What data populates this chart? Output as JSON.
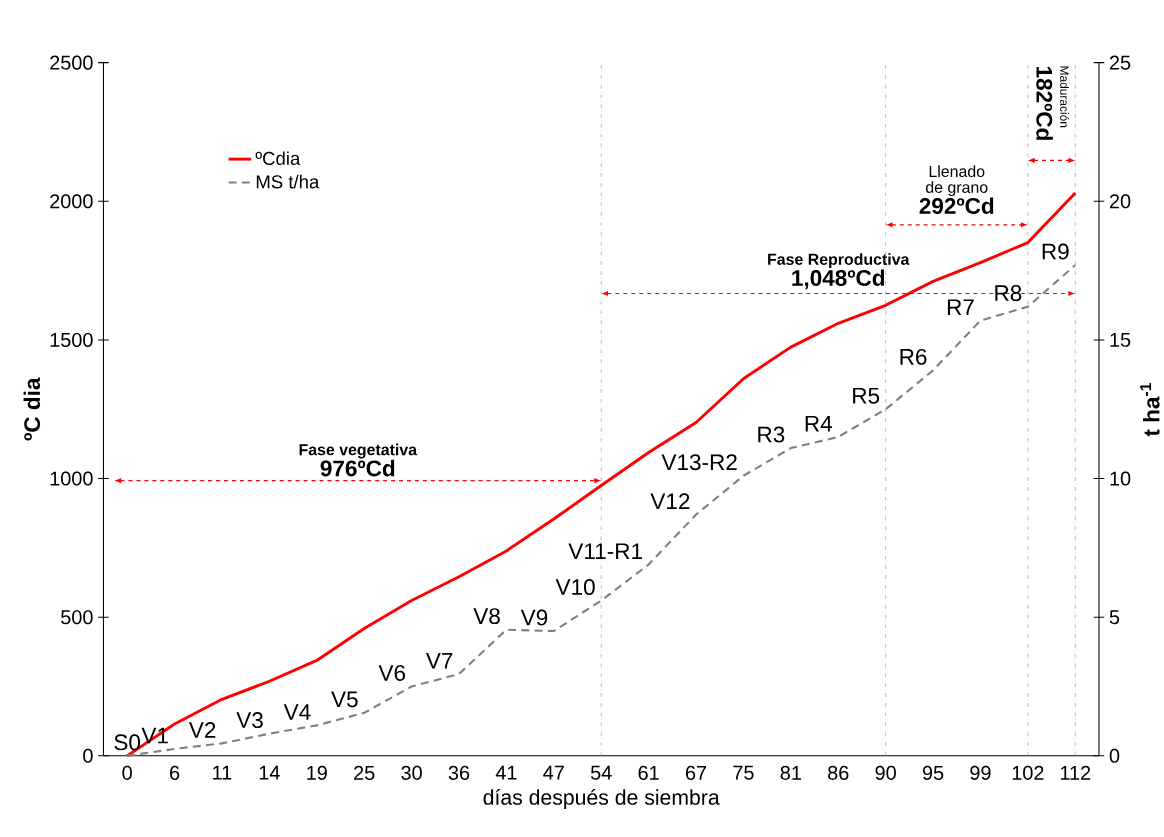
{
  "chart_data": {
    "type": "line",
    "xlabel": "días después de siembra",
    "ylabel": "ºC dia",
    "y2label": "t ha$^{-1}$",
    "categories": [
      "0",
      "6",
      "11",
      "14",
      "19",
      "25",
      "30",
      "36",
      "41",
      "47",
      "54",
      "61",
      "67",
      "75",
      "81",
      "86",
      "90",
      "95",
      "99",
      "102",
      "112"
    ],
    "series": [
      {
        "name": "ºCdia",
        "color": "#ff0000",
        "line_style": "solid",
        "values": [
          0,
          115,
          204,
          269,
          344,
          459,
          560,
          646,
          739,
          854,
          975,
          1094,
          1202,
          1360,
          1474,
          1560,
          1625,
          1711,
          1779,
          1851,
          2030
        ]
      },
      {
        "name": "MS t/ha",
        "color": "#808080",
        "line_style": "dashed",
        "axis": "y2",
        "values": [
          0,
          0.25,
          0.45,
          0.8,
          1.1,
          1.55,
          2.5,
          2.95,
          4.55,
          4.5,
          5.6,
          6.9,
          8.7,
          10.1,
          11.1,
          11.5,
          12.5,
          13.9,
          15.7,
          16.2,
          17.7
        ],
        "value_labels": [
          "S0",
          "V1",
          "V2",
          "V3",
          "V4",
          "V5",
          "V6",
          "V7",
          "V8",
          "V9",
          "V10",
          "V11-R1",
          "V12",
          "V13-R2",
          "R3",
          "R4",
          "R5",
          "R6",
          "R7",
          "R8",
          "R9"
        ]
      }
    ],
    "ylim": [
      0,
      2500
    ],
    "yticks": [
      0,
      500,
      1000,
      1500,
      2000,
      2500
    ],
    "y2lim": [
      0,
      25
    ],
    "y2ticks": [
      0,
      5,
      10,
      15,
      20,
      25
    ],
    "legend": "top left",
    "ref_lines": [
      {
        "axis": "x",
        "value": "54",
        "color": "#808080",
        "line_style": "dashdot"
      },
      {
        "axis": "x",
        "value": "90",
        "color": "#808080",
        "line_style": "dashdot"
      },
      {
        "axis": "x",
        "value": "102",
        "color": "#808080",
        "line_style": "dashdot"
      },
      {
        "axis": "x",
        "value": "112",
        "color": "#808080",
        "line_style": "dashdot"
      }
    ],
    "annotations": [
      "Fase vegetativa",
      "976ºCd",
      "Fase Reproductiva",
      "1,048ºCd",
      "Llenado de grano",
      "292ºCd",
      "Maduración",
      "182ºCd"
    ]
  }
}
